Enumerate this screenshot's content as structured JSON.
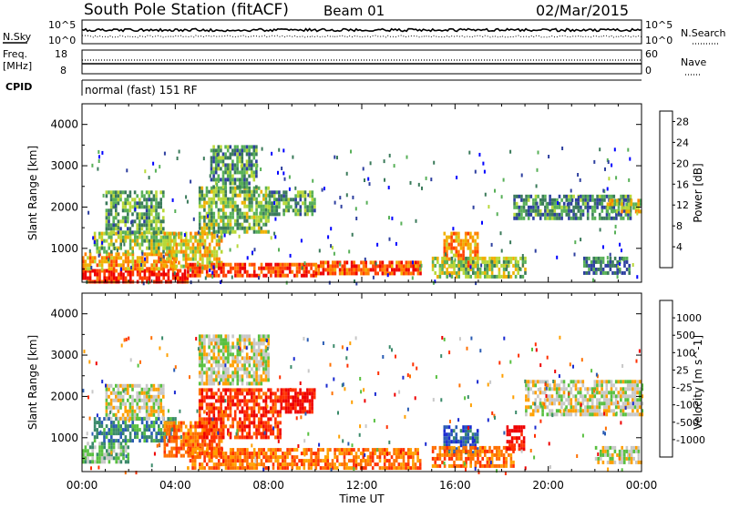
{
  "header": {
    "station": "South Pole Station (fitACF)",
    "beam": "Beam 01",
    "date": "02/Mar/2015"
  },
  "noise_panel": {
    "left_label": "N.Sky",
    "right_label": "N.Search",
    "left_ticks": [
      "10^5",
      "10^0"
    ],
    "right_ticks": [
      "10^5",
      "10^0"
    ]
  },
  "freq_panel": {
    "left_label_line1": "Freq.",
    "left_label_line2": "[MHz]",
    "right_label": "Nave",
    "left_ticks": [
      "18",
      "8"
    ],
    "right_ticks": [
      "60",
      "0"
    ]
  },
  "cpid_panel": {
    "label": "CPID",
    "mode": "normal (fast) 151 RF"
  },
  "colors": {
    "power_scale": [
      "#0000ff",
      "#2d3f9f",
      "#3a7a5a",
      "#58b058",
      "#b8d838",
      "#f0b000",
      "#ff8000",
      "#ff4000",
      "#ee0000"
    ],
    "velocity_scale": [
      "#1a2ad0",
      "#2a5cb4",
      "#3a8a6a",
      "#58c040",
      "#c8c8c8",
      "#ffa000",
      "#ff7000",
      "#ff3000",
      "#ee0000"
    ]
  },
  "chart_data": [
    {
      "type": "heatmap",
      "panel": "power",
      "xlabel": "",
      "ylabel": "Slant Range [km]",
      "yticks": [
        1000,
        2000,
        3000,
        4000
      ],
      "ylim": [
        180,
        4500
      ],
      "colorbar_label": "Power [dB]",
      "colorbar_ticks": [
        4,
        8,
        12,
        16,
        20,
        24,
        28
      ],
      "colorbar_range": [
        0,
        30
      ],
      "regions": [
        {
          "t0": 0.0,
          "t1": 4.5,
          "r0": 200,
          "r1": 500,
          "level": 27
        },
        {
          "t0": 0.0,
          "t1": 4.0,
          "r0": 500,
          "r1": 900,
          "level": 20
        },
        {
          "t0": 0.5,
          "t1": 4.0,
          "r0": 900,
          "r1": 1400,
          "level": 14
        },
        {
          "t0": 1.0,
          "t1": 3.5,
          "r0": 1400,
          "r1": 2400,
          "level": 11
        },
        {
          "t0": 3.5,
          "t1": 6.0,
          "r0": 600,
          "r1": 1400,
          "level": 17
        },
        {
          "t0": 4.5,
          "t1": 10.0,
          "r0": 350,
          "r1": 650,
          "level": 25
        },
        {
          "t0": 10.0,
          "t1": 14.5,
          "r0": 350,
          "r1": 700,
          "level": 24
        },
        {
          "t0": 5.0,
          "t1": 8.0,
          "r0": 1400,
          "r1": 2500,
          "level": 13
        },
        {
          "t0": 5.5,
          "t1": 7.5,
          "r0": 2500,
          "r1": 3500,
          "level": 10
        },
        {
          "t0": 8.0,
          "t1": 10.0,
          "r0": 1800,
          "r1": 2400,
          "level": 11
        },
        {
          "t0": 15.5,
          "t1": 17.0,
          "r0": 600,
          "r1": 1400,
          "level": 21
        },
        {
          "t0": 15.0,
          "t1": 19.0,
          "r0": 300,
          "r1": 800,
          "level": 14
        },
        {
          "t0": 18.5,
          "t1": 23.5,
          "r0": 1700,
          "r1": 2300,
          "level": 9
        },
        {
          "t0": 22.5,
          "t1": 24.0,
          "r0": 1900,
          "r1": 2200,
          "level": 16
        },
        {
          "t0": 21.5,
          "t1": 23.5,
          "r0": 400,
          "r1": 800,
          "level": 8
        }
      ]
    },
    {
      "type": "heatmap",
      "panel": "velocity",
      "xlabel": "Time UT",
      "ylabel": "Slant Range [km]",
      "xticks": [
        "00:00",
        "04:00",
        "08:00",
        "12:00",
        "16:00",
        "20:00",
        "00:00"
      ],
      "xlim_hours": [
        0,
        24
      ],
      "yticks": [
        1000,
        2000,
        3000,
        4000
      ],
      "ylim": [
        180,
        4500
      ],
      "colorbar_label": "Velocity [m s^-1]",
      "colorbar_ticks": [
        "1000",
        "500",
        "100",
        "25",
        "-25",
        "-100",
        "-500",
        "-1000"
      ],
      "regions": [
        {
          "t0": 0.0,
          "t1": 2.0,
          "r0": 400,
          "r1": 900,
          "level": 3
        },
        {
          "t0": 0.5,
          "t1": 4.0,
          "r0": 900,
          "r1": 1500,
          "level": 2
        },
        {
          "t0": 1.0,
          "t1": 3.5,
          "r0": 1500,
          "r1": 2300,
          "level": 4
        },
        {
          "t0": 3.5,
          "t1": 6.0,
          "r0": 600,
          "r1": 1400,
          "level": 6
        },
        {
          "t0": 4.5,
          "t1": 14.5,
          "r0": 300,
          "r1": 750,
          "level": 6
        },
        {
          "t0": 5.0,
          "t1": 8.5,
          "r0": 1000,
          "r1": 2200,
          "level": 7
        },
        {
          "t0": 5.0,
          "t1": 8.0,
          "r0": 2300,
          "r1": 3500,
          "level": 4
        },
        {
          "t0": 8.5,
          "t1": 10.0,
          "r0": 1600,
          "r1": 2200,
          "level": 8
        },
        {
          "t0": 15.5,
          "t1": 17.0,
          "r0": 600,
          "r1": 1300,
          "level": 1
        },
        {
          "t0": 15.0,
          "t1": 18.5,
          "r0": 300,
          "r1": 800,
          "level": 6
        },
        {
          "t0": 18.2,
          "t1": 19.0,
          "r0": 700,
          "r1": 1300,
          "level": 8
        },
        {
          "t0": 19.0,
          "t1": 24.0,
          "r0": 1600,
          "r1": 2400,
          "level": 4
        },
        {
          "t0": 22.0,
          "t1": 24.0,
          "r0": 400,
          "r1": 800,
          "level": 4
        }
      ]
    }
  ]
}
